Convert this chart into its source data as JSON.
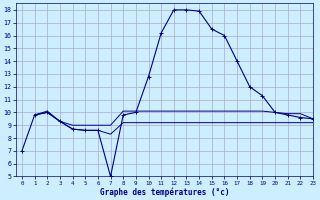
{
  "xlabel": "Graphe des températures (°c)",
  "background_color": "#cceeff",
  "grid_color": "#aaaacc",
  "line_color": "#00008b",
  "xlim": [
    -0.5,
    23
  ],
  "ylim": [
    5,
    18.5
  ],
  "xticks": [
    0,
    1,
    2,
    3,
    4,
    5,
    6,
    7,
    8,
    9,
    10,
    11,
    12,
    13,
    14,
    15,
    16,
    17,
    18,
    19,
    20,
    21,
    22,
    23
  ],
  "yticks": [
    5,
    6,
    7,
    8,
    9,
    10,
    11,
    12,
    13,
    14,
    15,
    16,
    17,
    18
  ],
  "temp_curve": [
    [
      0,
      7.0
    ],
    [
      1,
      9.8
    ],
    [
      2,
      10.0
    ],
    [
      3,
      9.3
    ],
    [
      4,
      8.7
    ],
    [
      5,
      8.6
    ],
    [
      6,
      8.6
    ],
    [
      7,
      5.0
    ],
    [
      8,
      9.8
    ],
    [
      9,
      10.0
    ],
    [
      10,
      12.8
    ],
    [
      11,
      16.2
    ],
    [
      12,
      18.0
    ],
    [
      13,
      18.0
    ],
    [
      14,
      17.9
    ],
    [
      15,
      16.5
    ],
    [
      16,
      16.0
    ],
    [
      17,
      14.0
    ],
    [
      18,
      12.0
    ],
    [
      19,
      11.3
    ],
    [
      20,
      10.0
    ],
    [
      21,
      9.8
    ],
    [
      22,
      9.6
    ],
    [
      23,
      9.5
    ]
  ],
  "min_curve_x": [
    1,
    2,
    3,
    4,
    5,
    6,
    7,
    8,
    9,
    10,
    11,
    12,
    13,
    14,
    15,
    16,
    17,
    18,
    19,
    20,
    21,
    22,
    23
  ],
  "min_curve_y": [
    9.8,
    10.0,
    9.3,
    8.7,
    8.6,
    8.6,
    8.3,
    9.2,
    9.2,
    9.2,
    9.2,
    9.2,
    9.2,
    9.2,
    9.2,
    9.2,
    9.2,
    9.2,
    9.2,
    9.2,
    9.2,
    9.2,
    9.2
  ],
  "max_curve_x": [
    1,
    2,
    3,
    4,
    5,
    6,
    7,
    8,
    9,
    10,
    11,
    12,
    13,
    14,
    15,
    16,
    17,
    18,
    19,
    20,
    21,
    22,
    23
  ],
  "max_curve_y": [
    9.8,
    10.1,
    9.3,
    9.0,
    9.0,
    9.0,
    9.0,
    10.1,
    10.1,
    10.1,
    10.1,
    10.1,
    10.1,
    10.1,
    10.1,
    10.1,
    10.1,
    10.1,
    10.1,
    10.0,
    9.9,
    9.9,
    9.5
  ]
}
